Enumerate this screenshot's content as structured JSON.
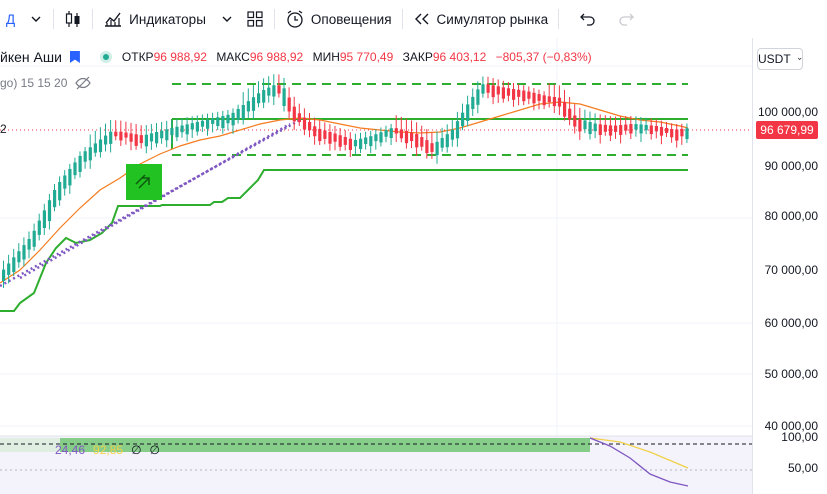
{
  "toolbar": {
    "interval_label": "Д",
    "indicators_label": "Индикаторы",
    "alerts_label": "Оповещения",
    "replay_label": "Симулятор рынка"
  },
  "legend": {
    "chart_type": "йкен Аши",
    "open_label": "ОТКР",
    "open_value": "96 988,92",
    "high_label": "МАКС",
    "high_value": "96 988,92",
    "low_label": "МИН",
    "low_value": "95 770,49",
    "close_label": "ЗАКР",
    "close_value": "96 403,12",
    "change_value": "−805,37 (−0,83%)",
    "indicator_text": "go) 15 15 20",
    "left_price_fragment": "2"
  },
  "currency": "USDT",
  "price_axis": [
    "100 000,00",
    "90 000,00",
    "80 000,00",
    "70 000,00",
    "60 000,00",
    "50 000,00",
    "40 000,00"
  ],
  "current_price": "96 679,99",
  "oscillator": {
    "value1": "24,46",
    "value2": "92,85",
    "value3": "∅",
    "value4": "∅",
    "axis_labels": [
      "100,00",
      "50,00"
    ]
  },
  "colors": {
    "up": "#22ab94",
    "down": "#f23645",
    "channel": "#2eae2e",
    "ma": "#f57c1f",
    "trend": "#7e57c2",
    "oscillator_purple": "#7e57c2",
    "oscillator_yellow": "#f7e36a"
  }
}
